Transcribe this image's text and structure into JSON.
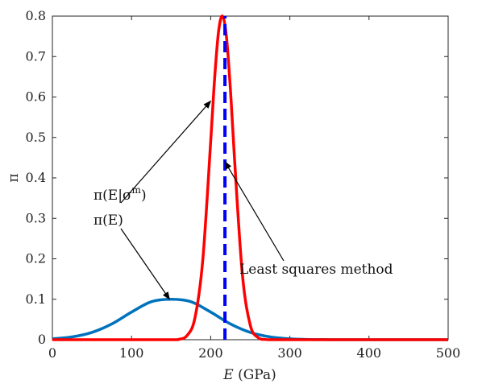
{
  "chart_data": {
    "type": "line",
    "xlabel": "E (GPa)",
    "xlabel_var": "E",
    "xlabel_unit": " (GPa)",
    "ylabel": "π",
    "xlim": [
      0,
      500
    ],
    "ylim": [
      0,
      0.8
    ],
    "xticks": [
      0,
      100,
      200,
      300,
      400,
      500
    ],
    "yticks": [
      0,
      0.1,
      0.2,
      0.3,
      0.4,
      0.5,
      0.6,
      0.7,
      0.8
    ],
    "ytick_labels": [
      "0",
      "0.1",
      "0.2",
      "0.3",
      "0.4",
      "0.5",
      "0.6",
      "0.7",
      "0.8"
    ],
    "grid": false,
    "series": [
      {
        "name": "π(E)",
        "color": "#0072BD",
        "style": "solid",
        "x": [
          0,
          25,
          50,
          75,
          100,
          125,
          150,
          175,
          200,
          225,
          250,
          275,
          300,
          325,
          350,
          400,
          450,
          500
        ],
        "y": [
          0.0022,
          0.007,
          0.0181,
          0.0389,
          0.0683,
          0.0939,
          0.1,
          0.0939,
          0.0683,
          0.0389,
          0.0181,
          0.007,
          0.0022,
          0.0005,
          0.0001,
          0,
          0,
          0
        ]
      },
      {
        "name": "π(E|σ^m)",
        "color": "#FF0000",
        "style": "solid",
        "x": [
          0,
          100,
          150,
          160,
          170,
          180,
          190,
          200,
          205,
          210,
          215,
          220,
          225,
          230,
          240,
          250,
          260,
          270,
          280,
          300,
          400,
          500
        ],
        "y": [
          0,
          0,
          0,
          0.001,
          0.01,
          0.053,
          0.197,
          0.49,
          0.647,
          0.763,
          0.8,
          0.747,
          0.616,
          0.45,
          0.162,
          0.036,
          0.005,
          0.0004,
          0,
          0,
          0,
          0
        ]
      },
      {
        "name": "Least squares method",
        "color": "#0000FF",
        "style": "dashed",
        "x": [
          218,
          218
        ],
        "y": [
          0,
          0.8
        ]
      }
    ],
    "annotations": [
      {
        "text": "π(E|σ",
        "sup": "m",
        "close": ")",
        "arrow_to": [
          200,
          0.59
        ]
      },
      {
        "text": "π(E)",
        "arrow_to": [
          148,
          0.1
        ]
      },
      {
        "text": "Least squares method",
        "arrow_to": [
          218,
          0.44
        ]
      }
    ]
  }
}
